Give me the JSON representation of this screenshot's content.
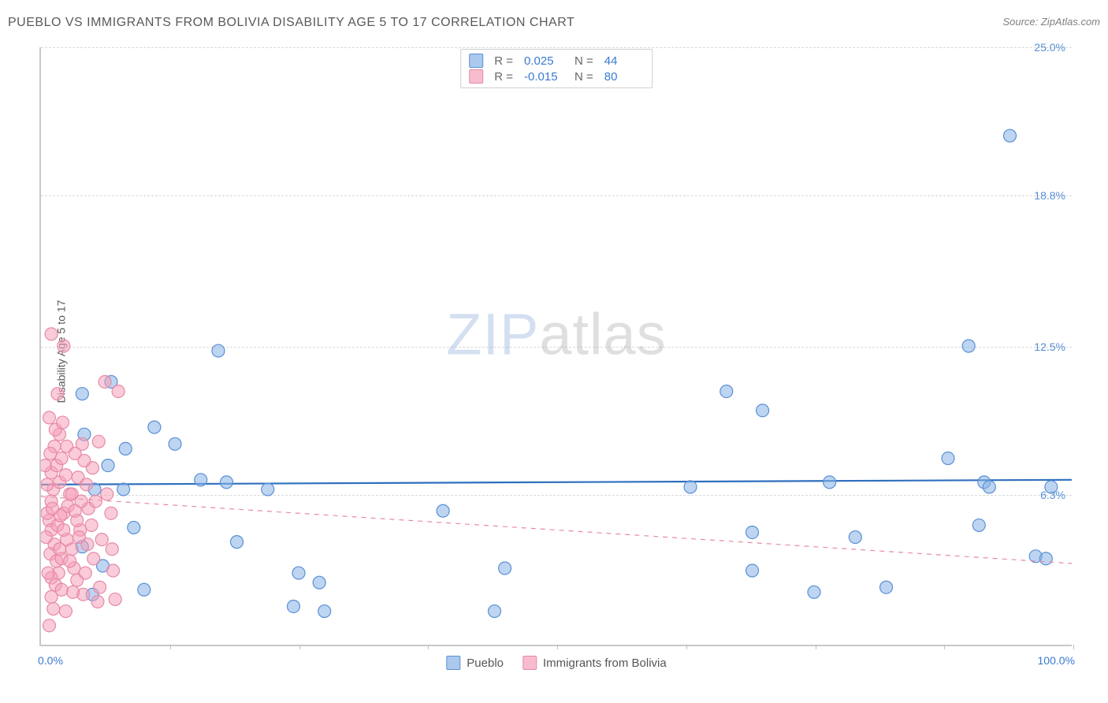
{
  "header": {
    "title": "PUEBLO VS IMMIGRANTS FROM BOLIVIA DISABILITY AGE 5 TO 17 CORRELATION CHART",
    "source": "Source: ZipAtlas.com"
  },
  "watermark": {
    "zip": "ZIP",
    "atlas": "atlas"
  },
  "chart": {
    "type": "scatter",
    "ylabel": "Disability Age 5 to 17",
    "xlim": [
      0,
      100
    ],
    "ylim": [
      0,
      25
    ],
    "xmin_label": "0.0%",
    "xmax_label": "100.0%",
    "yticks": [
      {
        "value": 6.3,
        "label": "6.3%"
      },
      {
        "value": 12.5,
        "label": "12.5%"
      },
      {
        "value": 18.8,
        "label": "18.8%"
      },
      {
        "value": 25.0,
        "label": "25.0%"
      }
    ],
    "xtick_positions": [
      12.5,
      25,
      37.5,
      50,
      62.5,
      75,
      87.5,
      100
    ],
    "grid_color": "#d9d9d9",
    "background_color": "#ffffff",
    "marker_radius": 8,
    "marker_stroke_width": 1.2,
    "series": [
      {
        "name": "Pueblo",
        "fill_color": "rgba(135,178,230,0.55)",
        "stroke_color": "#5a8fd6",
        "trend": {
          "y_intercept": 6.7,
          "y_at_xmax": 6.9,
          "stroke": "#2f6fbd",
          "width": 2.2,
          "dash": ""
        },
        "points": [
          [
            4.0,
            10.5
          ],
          [
            6.8,
            11.0
          ],
          [
            4.2,
            8.8
          ],
          [
            6.5,
            7.5
          ],
          [
            8.2,
            8.2
          ],
          [
            11.0,
            9.1
          ],
          [
            9.0,
            4.9
          ],
          [
            5.2,
            6.5
          ],
          [
            4.0,
            4.1
          ],
          [
            6.0,
            3.3
          ],
          [
            10.0,
            2.3
          ],
          [
            5.0,
            2.1
          ],
          [
            17.2,
            12.3
          ],
          [
            13.0,
            8.4
          ],
          [
            15.5,
            6.9
          ],
          [
            18.0,
            6.8
          ],
          [
            19.0,
            4.3
          ],
          [
            25.0,
            3.0
          ],
          [
            27.5,
            1.4
          ],
          [
            27.0,
            2.6
          ],
          [
            24.5,
            1.6
          ],
          [
            39.0,
            5.6
          ],
          [
            44.0,
            1.4
          ],
          [
            45.0,
            3.2
          ],
          [
            63.0,
            6.6
          ],
          [
            66.5,
            10.6
          ],
          [
            70.0,
            9.8
          ],
          [
            69.0,
            4.7
          ],
          [
            69.0,
            3.1
          ],
          [
            75.0,
            2.2
          ],
          [
            76.5,
            6.8
          ],
          [
            82.0,
            2.4
          ],
          [
            88.0,
            7.8
          ],
          [
            90.0,
            12.5
          ],
          [
            91.5,
            6.8
          ],
          [
            91.0,
            5.0
          ],
          [
            92.0,
            6.6
          ],
          [
            94.0,
            21.3
          ],
          [
            96.5,
            3.7
          ],
          [
            97.5,
            3.6
          ],
          [
            98.0,
            6.6
          ],
          [
            79.0,
            4.5
          ],
          [
            22.0,
            6.5
          ],
          [
            8.0,
            6.5
          ]
        ]
      },
      {
        "name": "Immigrants from Bolivia",
        "fill_color": "rgba(245,160,185,0.55)",
        "stroke_color": "#e68aa5",
        "trend": {
          "y_intercept": 6.2,
          "y_at_xmax": 3.4,
          "stroke": "#e68aa5",
          "width": 1.2,
          "dash": "6,6"
        },
        "points": [
          [
            0.8,
            5.2
          ],
          [
            1.0,
            6.0
          ],
          [
            1.2,
            6.5
          ],
          [
            0.6,
            5.5
          ],
          [
            1.0,
            4.8
          ],
          [
            1.3,
            4.2
          ],
          [
            0.5,
            4.5
          ],
          [
            0.9,
            3.8
          ],
          [
            1.5,
            3.5
          ],
          [
            1.7,
            3.0
          ],
          [
            1.0,
            2.8
          ],
          [
            1.4,
            2.5
          ],
          [
            2.0,
            2.3
          ],
          [
            1.0,
            2.0
          ],
          [
            1.2,
            1.5
          ],
          [
            0.8,
            0.8
          ],
          [
            2.4,
            1.4
          ],
          [
            1.6,
            5.0
          ],
          [
            2.2,
            5.5
          ],
          [
            2.6,
            5.8
          ],
          [
            2.8,
            6.3
          ],
          [
            1.8,
            6.8
          ],
          [
            1.0,
            7.2
          ],
          [
            1.5,
            7.5
          ],
          [
            2.0,
            7.8
          ],
          [
            1.3,
            8.3
          ],
          [
            2.5,
            8.3
          ],
          [
            1.8,
            8.8
          ],
          [
            0.8,
            9.5
          ],
          [
            1.6,
            10.5
          ],
          [
            2.2,
            12.5
          ],
          [
            1.0,
            13.0
          ],
          [
            3.0,
            4.0
          ],
          [
            3.2,
            3.2
          ],
          [
            3.5,
            2.7
          ],
          [
            3.8,
            4.8
          ],
          [
            3.5,
            5.2
          ],
          [
            4.1,
            2.1
          ],
          [
            4.3,
            3.0
          ],
          [
            4.5,
            4.2
          ],
          [
            4.9,
            5.0
          ],
          [
            5.1,
            3.6
          ],
          [
            5.5,
            1.8
          ],
          [
            5.7,
            2.4
          ],
          [
            3.0,
            6.3
          ],
          [
            3.6,
            7.0
          ],
          [
            4.4,
            6.7
          ],
          [
            5.0,
            7.4
          ],
          [
            5.6,
            8.5
          ],
          [
            6.2,
            11.0
          ],
          [
            3.3,
            8.0
          ],
          [
            4.0,
            8.4
          ],
          [
            6.8,
            5.5
          ],
          [
            7.0,
            3.1
          ],
          [
            7.2,
            1.9
          ],
          [
            7.5,
            10.6
          ],
          [
            2.5,
            4.4
          ],
          [
            2.0,
            3.6
          ],
          [
            0.6,
            6.7
          ],
          [
            0.4,
            7.5
          ],
          [
            0.9,
            8.0
          ],
          [
            1.4,
            9.0
          ],
          [
            1.8,
            4.0
          ],
          [
            2.2,
            4.8
          ],
          [
            2.8,
            3.5
          ],
          [
            3.3,
            5.6
          ],
          [
            4.6,
            5.7
          ],
          [
            2.4,
            7.1
          ],
          [
            3.7,
            4.5
          ],
          [
            4.2,
            7.7
          ],
          [
            5.3,
            6.0
          ],
          [
            5.9,
            4.4
          ],
          [
            6.4,
            6.3
          ],
          [
            6.9,
            4.0
          ],
          [
            2.1,
            9.3
          ],
          [
            3.1,
            2.2
          ],
          [
            1.9,
            5.4
          ],
          [
            0.7,
            3.0
          ],
          [
            1.1,
            5.7
          ],
          [
            3.9,
            6.0
          ]
        ]
      }
    ]
  },
  "legend_top": {
    "rows": [
      {
        "swatch_fill": "rgba(135,178,230,0.7)",
        "swatch_stroke": "#5a8fd6",
        "r_label": "R =",
        "r_value": " 0.025",
        "n_label": "N =",
        "n_value": "44"
      },
      {
        "swatch_fill": "rgba(245,160,185,0.7)",
        "swatch_stroke": "#e68aa5",
        "r_label": "R =",
        "r_value": "-0.015",
        "n_label": "N =",
        "n_value": "80"
      }
    ]
  },
  "legend_bottom": {
    "items": [
      {
        "label": "Pueblo",
        "swatch_fill": "rgba(135,178,230,0.7)",
        "swatch_stroke": "#5a8fd6"
      },
      {
        "label": "Immigrants from Bolivia",
        "swatch_fill": "rgba(245,160,185,0.7)",
        "swatch_stroke": "#e68aa5"
      }
    ]
  }
}
